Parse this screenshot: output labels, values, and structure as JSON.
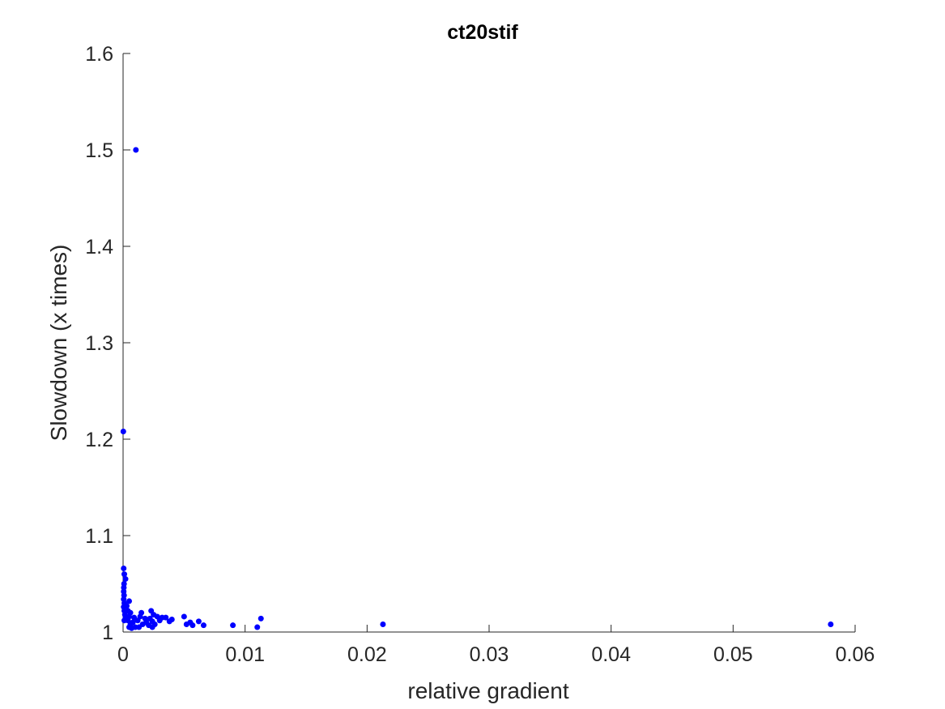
{
  "colors": {
    "marker": "#0000ff",
    "axis": "#262626",
    "background": "#ffffff"
  },
  "chart_data": {
    "type": "scatter",
    "title": "ct20stif",
    "xlabel": "relative gradient",
    "ylabel": "Slowdown (x times)",
    "xlim": [
      0,
      0.06
    ],
    "ylim": [
      1,
      1.6
    ],
    "xticks": [
      0,
      0.01,
      0.02,
      0.03,
      0.04,
      0.05,
      0.06
    ],
    "xtick_labels": [
      "0",
      "0.01",
      "0.02",
      "0.03",
      "0.04",
      "0.05",
      "0.06"
    ],
    "yticks": [
      1,
      1.1,
      1.2,
      1.3,
      1.4,
      1.5,
      1.6
    ],
    "ytick_labels": [
      "1",
      "1.1",
      "1.2",
      "1.3",
      "1.4",
      "1.5",
      "1.6"
    ],
    "grid": false,
    "series": [
      {
        "points": [
          [
            0.00105,
            1.5
          ],
          [
            2e-05,
            1.208
          ],
          [
            5e-05,
            1.066
          ],
          [
            0.0001,
            1.06
          ],
          [
            0.0002,
            1.055
          ],
          [
            8e-05,
            1.05
          ],
          [
            6e-05,
            1.046
          ],
          [
            5e-05,
            1.042
          ],
          [
            8e-05,
            1.038
          ],
          [
            5e-05,
            1.034
          ],
          [
            0.0001,
            1.03
          ],
          [
            5e-05,
            1.026
          ],
          [
            0.0001,
            1.022
          ],
          [
            0.00015,
            1.018
          ],
          [
            0.0002,
            1.015
          ],
          [
            0.0001,
            1.012
          ],
          [
            0.0005,
            1.032
          ],
          [
            0.0003,
            1.027
          ],
          [
            0.0004,
            1.022
          ],
          [
            0.0006,
            1.02
          ],
          [
            0.0005,
            1.016
          ],
          [
            0.0004,
            1.012
          ],
          [
            0.0006,
            1.008
          ],
          [
            0.0005,
            1.005
          ],
          [
            0.0007,
            1.004
          ],
          [
            0.001,
            1.005
          ],
          [
            0.0008,
            1.01
          ],
          [
            0.0009,
            1.015
          ],
          [
            0.0012,
            1.012
          ],
          [
            0.0015,
            1.02
          ],
          [
            0.0014,
            1.016
          ],
          [
            0.0016,
            1.008
          ],
          [
            0.0013,
            1.005
          ],
          [
            0.0018,
            1.014
          ],
          [
            0.0019,
            1.01
          ],
          [
            0.0021,
            1.007
          ],
          [
            0.0023,
            1.022
          ],
          [
            0.0025,
            1.018
          ],
          [
            0.0022,
            1.014
          ],
          [
            0.0024,
            1.011
          ],
          [
            0.0026,
            1.008
          ],
          [
            0.0024,
            1.005
          ],
          [
            0.0028,
            1.016
          ],
          [
            0.003,
            1.012
          ],
          [
            0.0032,
            1.015
          ],
          [
            0.0035,
            1.015
          ],
          [
            0.004,
            1.013
          ],
          [
            0.0038,
            1.011
          ],
          [
            0.005,
            1.016
          ],
          [
            0.0052,
            1.008
          ],
          [
            0.0055,
            1.01
          ],
          [
            0.0057,
            1.007
          ],
          [
            0.0062,
            1.011
          ],
          [
            0.0066,
            1.007
          ],
          [
            0.009,
            1.007
          ],
          [
            0.011,
            1.005
          ],
          [
            0.0113,
            1.014
          ],
          [
            0.0213,
            1.008
          ],
          [
            0.058,
            1.008
          ]
        ]
      }
    ]
  }
}
